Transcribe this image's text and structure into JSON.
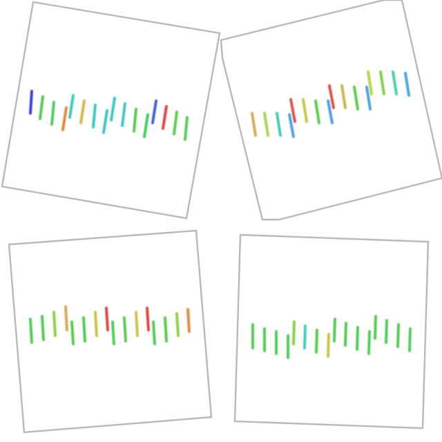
{
  "cards": [
    {
      "id": "panel-top-left",
      "frame_color": "#b9b9b9",
      "bars": [
        {
          "color": "#3a3fd8"
        },
        {
          "color": "#52c953"
        },
        {
          "color": "#4fcc5a"
        },
        {
          "color": "#e08a3c"
        },
        {
          "color": "#3cc7c0"
        },
        {
          "color": "#d8b44a"
        },
        {
          "color": "#3cc7c0"
        },
        {
          "color": "#3cc7c0"
        },
        {
          "color": "#3cc7c0"
        },
        {
          "color": "#45c4c8"
        },
        {
          "color": "#57cc4c"
        },
        {
          "color": "#3dd05a"
        },
        {
          "color": "#3f5fdc"
        },
        {
          "color": "#e0443f"
        },
        {
          "color": "#5bcc4c"
        },
        {
          "color": "#4fcf4f"
        }
      ]
    },
    {
      "id": "panel-top-right",
      "frame_color": "#b9b9b9",
      "bars": [
        {
          "color": "#d9a857"
        },
        {
          "color": "#a7d453"
        },
        {
          "color": "#45c9be"
        },
        {
          "color": "#4aa5e0"
        },
        {
          "color": "#d9534a"
        },
        {
          "color": "#c9c44a"
        },
        {
          "color": "#5bcc4c"
        },
        {
          "color": "#4ea0e0"
        },
        {
          "color": "#d9534a"
        },
        {
          "color": "#c9b84a"
        },
        {
          "color": "#5bcc4c"
        },
        {
          "color": "#4aa5e0"
        },
        {
          "color": "#b8d44a"
        },
        {
          "color": "#7fd04c"
        },
        {
          "color": "#45cfae"
        },
        {
          "color": "#4aa5e0"
        }
      ]
    },
    {
      "id": "panel-bottom-left",
      "frame_color": "#b9b9b9",
      "bars": [
        {
          "color": "#4fcc5a"
        },
        {
          "color": "#52c953"
        },
        {
          "color": "#8fcf4a"
        },
        {
          "color": "#d9a857"
        },
        {
          "color": "#57cc4c"
        },
        {
          "color": "#4fcc5a"
        },
        {
          "color": "#c9c44a"
        },
        {
          "color": "#e0443f"
        },
        {
          "color": "#4fcc5a"
        },
        {
          "color": "#57cc4c"
        },
        {
          "color": "#c9c44a"
        },
        {
          "color": "#e0443f"
        },
        {
          "color": "#4fcc5a"
        },
        {
          "color": "#57cc4c"
        },
        {
          "color": "#8fcf4a"
        },
        {
          "color": "#e08a3c"
        }
      ]
    },
    {
      "id": "panel-bottom-right",
      "frame_color": "#b9b9b9",
      "bars": [
        {
          "color": "#4fcc5a"
        },
        {
          "color": "#52c953"
        },
        {
          "color": "#4fcc5a"
        },
        {
          "color": "#4fcc5a"
        },
        {
          "color": "#8fcf4a"
        },
        {
          "color": "#45c9be"
        },
        {
          "color": "#57cc4c"
        },
        {
          "color": "#c9c44a"
        },
        {
          "color": "#4fcc5a"
        },
        {
          "color": "#52c953"
        },
        {
          "color": "#4fcc5a"
        },
        {
          "color": "#4fcc5a"
        },
        {
          "color": "#57cc4c"
        },
        {
          "color": "#4fcc5a"
        },
        {
          "color": "#52c953"
        },
        {
          "color": "#4fcc5a"
        }
      ]
    }
  ]
}
